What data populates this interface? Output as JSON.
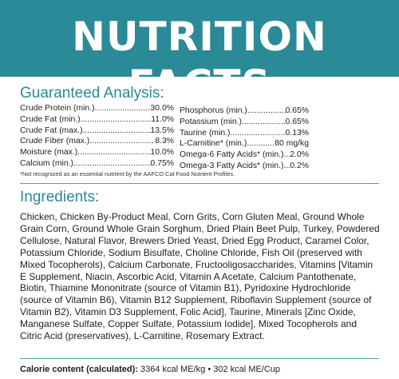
{
  "banner": {
    "title": "NUTRITION FACTS"
  },
  "guaranteed_analysis": {
    "title": "Guaranteed Analysis:",
    "left": [
      {
        "label": "Crude Protein (min.)",
        "value": "30.0%"
      },
      {
        "label": "Crude Fat (min.)",
        "value": "11.0%"
      },
      {
        "label": "Crude Fat (max.)",
        "value": "13.5%"
      },
      {
        "label": "Crude Fiber (max.)",
        "value": "8.3%"
      },
      {
        "label": "Moisture (max.)",
        "value": "10.0%"
      },
      {
        "label": "Calcium (min.)",
        "value": "0.75%"
      }
    ],
    "right": [
      {
        "label": "Phosphorus (min.)",
        "value": "0.65%"
      },
      {
        "label": "Potassium (min.)",
        "value": "0.65%"
      },
      {
        "label": "Taurine (min.)",
        "value": "0.13%"
      },
      {
        "label": "L-Carnitine* (min.)",
        "value": "80 mg/kg"
      },
      {
        "label": "Omega-6 Fatty Acids* (min.)",
        "value": "2.0%"
      },
      {
        "label": "Omega-3 Fatty Acids* (min.)",
        "value": "0.2%"
      }
    ],
    "footnote": "*Not recognized as an essential nutrient by the AAFCO Cat Food Nutrient Profiles."
  },
  "ingredients": {
    "title": "Ingredients:",
    "text": "Chicken, Chicken By-Product Meal, Corn Grits, Corn Gluten Meal, Ground Whole Grain Corn, Ground Whole Grain Sorghum, Dried Plain Beet Pulp, Turkey, Powdered Cellulose, Natural Flavor, Brewers Dried Yeast, Dried Egg Product, Caramel Color, Potassium Chloride, Sodium Bisulfate, Choline Chloride, Fish Oil (preserved with Mixed Tocopherols), Calcium Carbonate, Fructooligosaccharides, Vitamins [Vitamin E Supplement, Niacin, Ascorbic Acid, Vitamin A Acetate, Calcium Pantothenate, Biotin, Thiamine Mononitrate (source of Vitamin B1), Pyridoxine Hydrochloride (source of Vitamin B6), Vitamin B12 Supplement, Riboflavin Supplement (source of Vitamin B2), Vitamin D3 Supplement, Folic Acid], Taurine, Minerals [Zinc Oxide, Manganese Sulfate, Copper Sulfate, Potassium Iodide], Mixed Tocopherols and Citric Acid (preservatives), L-Carnitine, Rosemary Extract."
  },
  "calorie": {
    "label": "Calorie content (calculated):",
    "value": "3364 kcal ME/kg • 302 kcal ME/Cup"
  },
  "colors": {
    "accent": "#2a8a97",
    "text": "#1e1e1e"
  }
}
